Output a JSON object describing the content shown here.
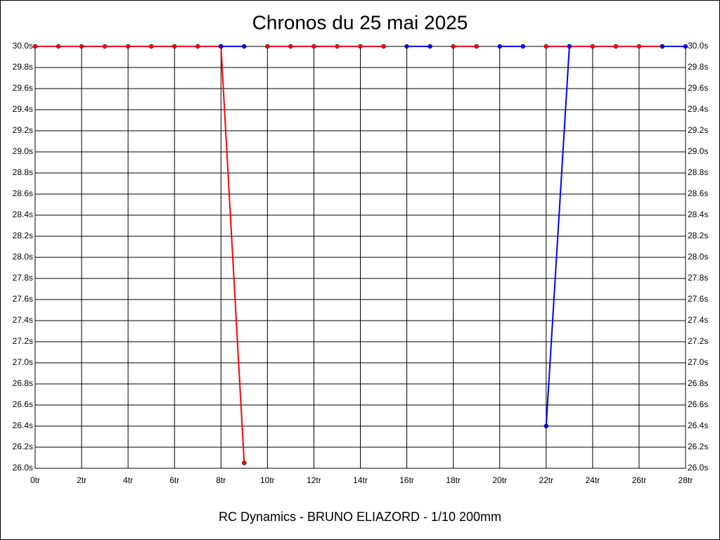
{
  "chart_data": {
    "type": "line",
    "title": "Chronos du 25 mai 2025",
    "footer": "RC Dynamics - BRUNO ELIAZORD - 1/10 200mm",
    "xlim": [
      0,
      28
    ],
    "xticks": [
      {
        "value": 0,
        "label": "0tr"
      },
      {
        "value": 2,
        "label": "2tr"
      },
      {
        "value": 4,
        "label": "4tr"
      },
      {
        "value": 6,
        "label": "6tr"
      },
      {
        "value": 8,
        "label": "8tr"
      },
      {
        "value": 10,
        "label": "10tr"
      },
      {
        "value": 12,
        "label": "12tr"
      },
      {
        "value": 14,
        "label": "14tr"
      },
      {
        "value": 16,
        "label": "16tr"
      },
      {
        "value": 18,
        "label": "18tr"
      },
      {
        "value": 20,
        "label": "20tr"
      },
      {
        "value": 22,
        "label": "22tr"
      },
      {
        "value": 24,
        "label": "24tr"
      },
      {
        "value": 26,
        "label": "26tr"
      },
      {
        "value": 28,
        "label": "28tr"
      }
    ],
    "ylim": [
      26.0,
      30.0
    ],
    "yticks": [
      {
        "value": 26.0,
        "label": "26.0s"
      },
      {
        "value": 26.2,
        "label": "26.2s"
      },
      {
        "value": 26.4,
        "label": "26.4s"
      },
      {
        "value": 26.6,
        "label": "26.6s"
      },
      {
        "value": 26.8,
        "label": "26.8s"
      },
      {
        "value": 27.0,
        "label": "27.0s"
      },
      {
        "value": 27.2,
        "label": "27.2s"
      },
      {
        "value": 27.4,
        "label": "27.4s"
      },
      {
        "value": 27.6,
        "label": "27.6s"
      },
      {
        "value": 27.8,
        "label": "27.8s"
      },
      {
        "value": 28.0,
        "label": "28.0s"
      },
      {
        "value": 28.2,
        "label": "28.2s"
      },
      {
        "value": 28.4,
        "label": "28.4s"
      },
      {
        "value": 28.6,
        "label": "28.6s"
      },
      {
        "value": 28.8,
        "label": "28.8s"
      },
      {
        "value": 29.0,
        "label": "29.0s"
      },
      {
        "value": 29.2,
        "label": "29.2s"
      },
      {
        "value": 29.4,
        "label": "29.4s"
      },
      {
        "value": 29.6,
        "label": "29.6s"
      },
      {
        "value": 29.8,
        "label": "29.8s"
      },
      {
        "value": 30.0,
        "label": "30.0s"
      }
    ],
    "grid": true,
    "series": [
      {
        "color": "#ff0000",
        "x": [
          0,
          1,
          2,
          3,
          4,
          5,
          6,
          7,
          8,
          9,
          null,
          10,
          11,
          12,
          13,
          14,
          15,
          null,
          18,
          19,
          null,
          22,
          23,
          24,
          25,
          26,
          27
        ],
        "values": [
          30.0,
          30.0,
          30.0,
          30.0,
          30.0,
          30.0,
          30.0,
          30.0,
          30.0,
          26.05,
          null,
          30.0,
          30.0,
          30.0,
          30.0,
          30.0,
          30.0,
          null,
          30.0,
          30.0,
          null,
          30.0,
          30.0,
          30.0,
          30.0,
          30.0,
          30.0
        ]
      },
      {
        "color": "#0000ff",
        "x": [
          8,
          9,
          null,
          16,
          17,
          null,
          20,
          21,
          null,
          22,
          23,
          null,
          27,
          28
        ],
        "values": [
          30.0,
          30.0,
          null,
          30.0,
          30.0,
          null,
          30.0,
          30.0,
          null,
          26.4,
          30.0,
          null,
          30.0,
          30.0
        ]
      }
    ]
  }
}
